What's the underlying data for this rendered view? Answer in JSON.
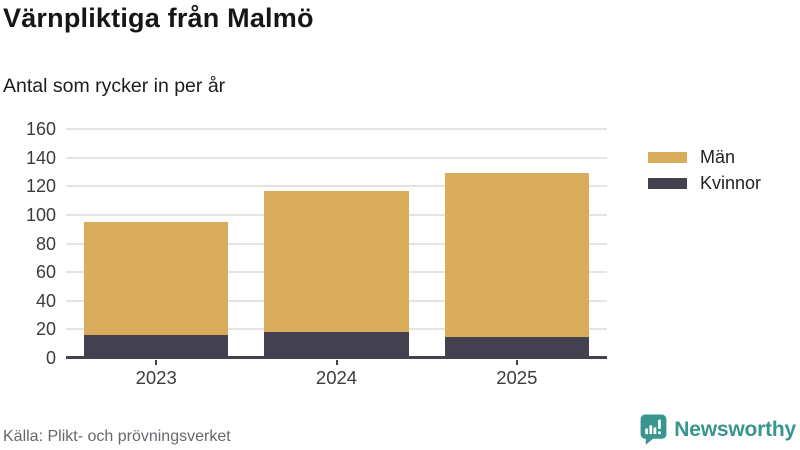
{
  "header": {
    "title": "Värnpliktiga från Malmö",
    "subtitle": "Antal som rycker in per år"
  },
  "chart_data": {
    "type": "bar",
    "stacked": true,
    "categories": [
      "2023",
      "2024",
      "2025"
    ],
    "series": [
      {
        "name": "Män",
        "color": "#d9ac5c",
        "values": [
          79,
          99,
          114
        ]
      },
      {
        "name": "Kvinnor",
        "color": "#444150",
        "values": [
          16,
          18,
          15
        ]
      }
    ],
    "stack_order_bottom_to_top": [
      "Kvinnor",
      "Män"
    ],
    "title": "Värnpliktiga från Malmö",
    "subtitle": "Antal som rycker in per år",
    "xlabel": "",
    "ylabel": "",
    "ylim": [
      0,
      160
    ],
    "yticks": [
      0,
      20,
      40,
      60,
      80,
      100,
      120,
      140,
      160
    ],
    "grid": true,
    "legend_position": "right"
  },
  "footer": {
    "source": "Källa: Plikt- och prövningsverket",
    "brand": "Newsworthy"
  },
  "colors": {
    "men": "#d9ac5c",
    "women": "#444150",
    "axis": "#444150",
    "gridline": "#e4e4e4",
    "brand_teal": "#38968e",
    "title_text": "#161616",
    "muted_text": "#65686c"
  }
}
